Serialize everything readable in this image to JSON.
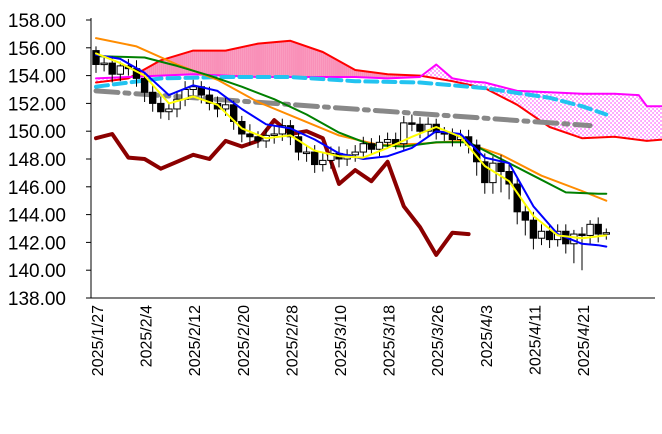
{
  "chart_data": {
    "type": "line",
    "title": "",
    "xlabel": "",
    "ylabel": "",
    "ylim": [
      138.0,
      158.0
    ],
    "ytick_labels": [
      "158.00",
      "156.00",
      "154.00",
      "152.00",
      "150.00",
      "148.00",
      "146.00",
      "144.00",
      "142.00",
      "140.00",
      "138.00"
    ],
    "ytick_values": [
      158,
      156,
      154,
      152,
      150,
      148,
      146,
      144,
      142,
      140,
      138
    ],
    "xtick_labels": [
      "2025/1/27",
      "2025/2/4",
      "2025/2/12",
      "2025/2/20",
      "2025/2/28",
      "2025/3/10",
      "2025/3/18",
      "2025/3/26",
      "2025/4/3",
      "2025/4/11",
      "2025/4/21"
    ],
    "xtick_index": [
      0,
      6,
      12,
      18,
      24,
      30,
      36,
      42,
      48,
      54,
      60
    ],
    "grid": false,
    "legend": "none",
    "colors": {
      "cloud_span_a": "#ff0000",
      "cloud_span_b": "#ff00ff",
      "cloud_bull_fill": "#f990b8",
      "cloud_bear_fill": "#ff66ff",
      "tenkan": "#0000ff",
      "kijun": "#008000",
      "chikou": "#8b0000",
      "ma_short": "#ffff00",
      "ma_long": "#ff8c00",
      "trend_gray": "#888888",
      "trend_cyan": "#22c3f0",
      "candle_up": "#ffffff",
      "candle_down": "#000000"
    },
    "candles": {
      "x_index": [
        0,
        1,
        2,
        3,
        4,
        5,
        6,
        7,
        8,
        9,
        10,
        11,
        12,
        13,
        14,
        15,
        16,
        17,
        18,
        19,
        20,
        21,
        22,
        23,
        24,
        25,
        26,
        27,
        28,
        29,
        30,
        31,
        32,
        33,
        34,
        35,
        36,
        37,
        38,
        39,
        40,
        41,
        42,
        43,
        44,
        45,
        46,
        47,
        48,
        49,
        50,
        51,
        52,
        53,
        54,
        55,
        56,
        57,
        58,
        59,
        60,
        61,
        62,
        63
      ],
      "open": [
        155.8,
        154.8,
        154.9,
        154.1,
        154.7,
        154.5,
        153.8,
        152.8,
        152.0,
        151.4,
        151.6,
        152.3,
        153.0,
        153.2,
        152.6,
        152.0,
        151.6,
        151.9,
        150.7,
        149.8,
        149.6,
        149.3,
        149.7,
        149.8,
        150.4,
        149.6,
        148.5,
        148.5,
        147.6,
        147.9,
        148.4,
        148.0,
        148.3,
        148.5,
        149.1,
        148.7,
        149.2,
        149.4,
        149.1,
        150.6,
        150.5,
        150.0,
        150.5,
        149.9,
        149.8,
        149.4,
        149.6,
        149.0,
        147.8,
        146.3,
        147.7,
        147.1,
        146.2,
        144.2,
        143.6,
        142.3,
        142.8,
        142.2,
        142.8,
        141.9,
        142.6,
        142.5,
        143.3,
        142.6
      ],
      "close": [
        154.8,
        154.9,
        154.1,
        154.7,
        154.5,
        153.8,
        152.8,
        152.0,
        151.4,
        151.6,
        152.3,
        153.0,
        153.2,
        152.6,
        152.0,
        151.6,
        151.9,
        150.7,
        149.8,
        149.6,
        149.3,
        149.7,
        149.8,
        150.4,
        149.6,
        148.5,
        148.5,
        147.6,
        147.9,
        148.4,
        148.0,
        148.3,
        148.5,
        149.1,
        148.7,
        149.2,
        149.4,
        149.1,
        150.6,
        150.5,
        150.0,
        150.5,
        149.9,
        149.8,
        149.4,
        149.6,
        149.0,
        147.8,
        146.3,
        147.7,
        147.1,
        146.2,
        144.2,
        143.6,
        142.3,
        142.8,
        142.2,
        142.8,
        141.9,
        142.6,
        142.5,
        143.3,
        142.6,
        142.7
      ],
      "high": [
        156.1,
        155.3,
        155.4,
        155.0,
        155.2,
        155.1,
        154.2,
        153.3,
        152.5,
        152.0,
        152.9,
        153.6,
        153.7,
        153.6,
        153.2,
        152.5,
        152.4,
        152.2,
        151.1,
        150.5,
        150.0,
        150.2,
        150.4,
        150.9,
        150.8,
        150.0,
        149.0,
        149.0,
        148.4,
        148.9,
        148.9,
        148.7,
        149.0,
        149.6,
        149.5,
        149.7,
        149.9,
        149.9,
        151.1,
        151.2,
        151.0,
        151.0,
        150.9,
        150.3,
        150.2,
        150.1,
        150.1,
        149.4,
        148.4,
        148.2,
        148.3,
        147.6,
        146.7,
        144.7,
        144.2,
        143.3,
        143.3,
        143.3,
        143.3,
        142.9,
        143.1,
        143.6,
        143.8,
        143.0
      ],
      "low": [
        154.2,
        154.3,
        153.5,
        153.6,
        154.0,
        153.2,
        152.1,
        151.4,
        150.9,
        150.8,
        151.0,
        151.8,
        152.5,
        152.0,
        151.5,
        151.0,
        151.1,
        150.1,
        149.2,
        149.0,
        148.8,
        148.8,
        149.1,
        149.3,
        149.0,
        147.9,
        147.8,
        147.0,
        147.1,
        147.3,
        147.4,
        147.5,
        147.8,
        148.1,
        148.3,
        148.2,
        148.8,
        148.7,
        148.6,
        150.0,
        149.5,
        149.6,
        149.4,
        149.3,
        148.9,
        148.9,
        148.4,
        146.8,
        145.5,
        145.5,
        145.6,
        145.1,
        143.3,
        142.5,
        141.5,
        141.8,
        141.6,
        141.7,
        141.2,
        140.5,
        140.0,
        141.8,
        142.0,
        142.2
      ]
    },
    "series": [
      {
        "key": "chikou",
        "color": "#8b0000",
        "x": [
          0,
          2,
          4,
          6,
          8,
          10,
          12,
          14,
          16,
          18,
          20,
          22,
          24,
          26,
          28,
          30,
          32,
          34,
          36,
          38,
          40,
          42,
          44,
          46
        ],
        "values": [
          149.5,
          149.8,
          148.1,
          148.0,
          147.3,
          147.8,
          148.3,
          148.0,
          149.3,
          148.9,
          149.3,
          150.8,
          149.8,
          150.0,
          149.5,
          146.2,
          147.2,
          146.4,
          147.8,
          144.6,
          143.1,
          141.1,
          142.7,
          142.6
        ],
        "x_note": "index offset"
      },
      {
        "key": "tenkan",
        "color": "#0000ff",
        "x": [
          0,
          3,
          6,
          9,
          12,
          15,
          18,
          21,
          24,
          27,
          30,
          33,
          36,
          39,
          42,
          45,
          48,
          51,
          54,
          57,
          60,
          62,
          63
        ],
        "values": [
          155.5,
          155.2,
          154.2,
          152.6,
          153.3,
          152.9,
          151.6,
          150.5,
          150.2,
          149.4,
          148.4,
          148.0,
          148.2,
          148.8,
          150.0,
          149.8,
          148.1,
          147.7,
          144.6,
          142.6,
          141.9,
          141.8,
          141.7
        ]
      },
      {
        "key": "kijun",
        "color": "#008000",
        "x": [
          0,
          6,
          10,
          14,
          18,
          22,
          26,
          30,
          34,
          38,
          42,
          46,
          50,
          54,
          58,
          62,
          63
        ],
        "values": [
          155.4,
          155.3,
          154.7,
          154.0,
          153.2,
          152.3,
          151.2,
          149.9,
          149.0,
          148.9,
          149.2,
          149.2,
          148.0,
          146.8,
          145.6,
          145.5,
          145.5
        ]
      },
      {
        "key": "ma_short",
        "color": "#ffff00",
        "x": [
          0,
          3,
          6,
          9,
          12,
          15,
          18,
          21,
          24,
          27,
          30,
          33,
          36,
          39,
          42,
          45,
          48,
          51,
          54,
          57,
          60,
          63
        ],
        "values": [
          155.6,
          154.9,
          154.0,
          152.0,
          152.5,
          151.9,
          150.2,
          149.5,
          149.7,
          148.6,
          148.2,
          148.1,
          148.8,
          149.6,
          150.3,
          149.6,
          147.5,
          146.4,
          143.9,
          142.5,
          142.3,
          142.5
        ]
      },
      {
        "key": "ma_long",
        "color": "#ff8c00",
        "x": [
          0,
          5,
          10,
          15,
          20,
          25,
          30,
          35,
          40,
          45,
          50,
          55,
          60,
          63
        ],
        "values": [
          156.7,
          156.1,
          154.8,
          153.7,
          152.1,
          150.9,
          149.7,
          149.0,
          149.1,
          149.3,
          148.3,
          146.8,
          145.7,
          145.0
        ]
      },
      {
        "key": "trend_gray",
        "color": "#888888",
        "x": [
          0,
          61
        ],
        "values": [
          152.9,
          150.4
        ]
      },
      {
        "key": "trend_cyan",
        "color": "#22c3f0",
        "x": [
          0,
          8,
          16,
          24,
          32,
          40,
          48,
          56,
          60,
          63
        ],
        "values": [
          153.2,
          153.8,
          153.9,
          153.9,
          153.6,
          153.5,
          153.1,
          152.4,
          151.8,
          151.2
        ]
      },
      {
        "key": "cloud_span_a",
        "color": "#ff0000",
        "x": [
          0,
          4,
          8,
          12,
          16,
          20,
          24,
          28,
          32,
          36,
          40,
          44,
          48,
          52,
          56,
          60,
          64,
          68,
          70
        ],
        "values": [
          153.5,
          153.8,
          155.1,
          155.8,
          155.8,
          156.3,
          156.5,
          155.7,
          154.4,
          154.1,
          154.0,
          153.6,
          153.1,
          151.9,
          150.3,
          149.5,
          149.6,
          149.3,
          149.4
        ]
      },
      {
        "key": "cloud_span_b",
        "color": "#ff00ff",
        "x": [
          0,
          4,
          8,
          12,
          16,
          20,
          24,
          28,
          32,
          36,
          40,
          42,
          44,
          46,
          48,
          52,
          56,
          60,
          64,
          67,
          68,
          70
        ],
        "values": [
          153.8,
          153.9,
          154.0,
          154.1,
          154.0,
          153.9,
          153.9,
          153.9,
          153.9,
          153.8,
          153.9,
          154.8,
          153.8,
          153.6,
          153.5,
          152.9,
          152.8,
          152.7,
          152.7,
          152.6,
          151.8,
          151.8
        ]
      }
    ]
  }
}
